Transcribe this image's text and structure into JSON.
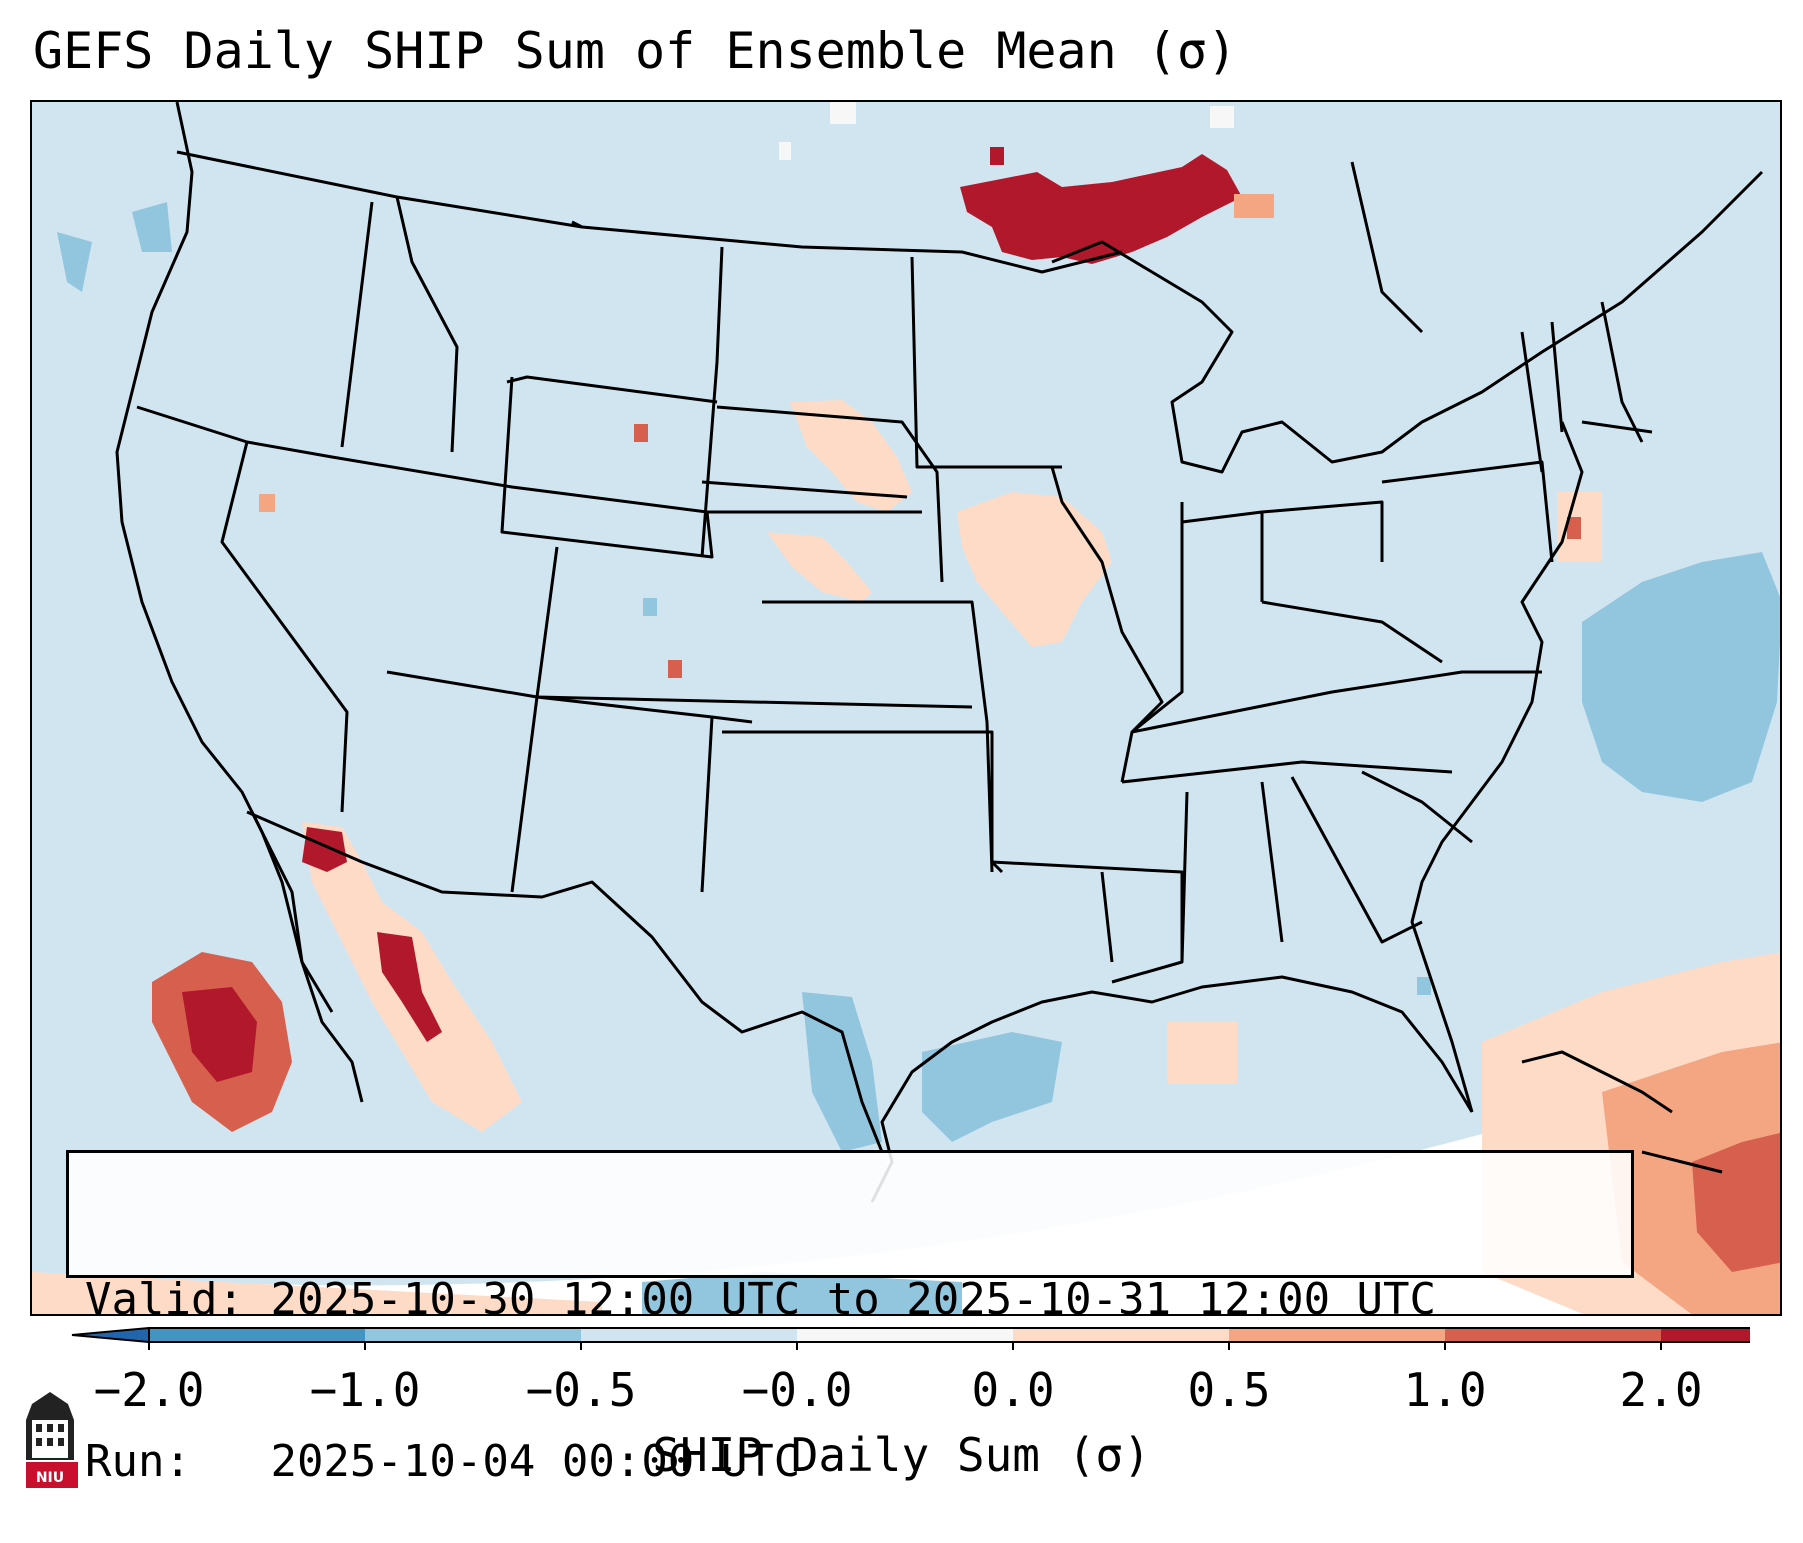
{
  "title": "GEFS Daily SHIP Sum of Ensemble Mean (σ)",
  "info": {
    "valid_label": "Valid:",
    "valid_value": "2025-10-30 12:00 UTC to 2025-10-31 12:00 UTC",
    "run_label": "Run:",
    "run_value": "2025-10-04 00:00 UTC"
  },
  "colorbar": {
    "label": "SHIP Daily Sum (σ)",
    "ticks": [
      "−2.0",
      "−1.0",
      "−0.5",
      "−0.0",
      "0.0",
      "0.5",
      "1.0",
      "2.0"
    ],
    "colors": [
      "#4393c3",
      "#92c5de",
      "#d1e5f0",
      "#f7f7f7",
      "#fddbc7",
      "#f4a582",
      "#d6604d",
      "#b2182b"
    ],
    "extend": "both"
  },
  "logo": {
    "text": "NIU"
  }
}
